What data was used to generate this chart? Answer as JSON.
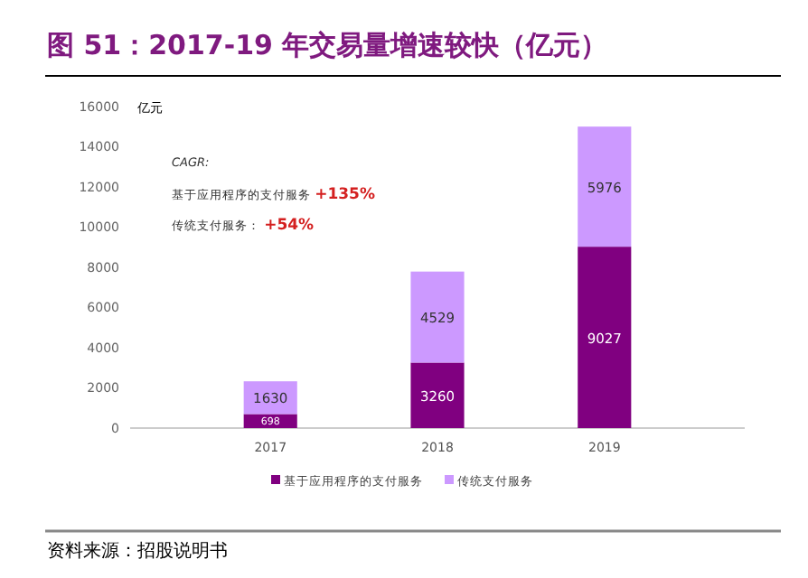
{
  "chart_data": {
    "type": "bar",
    "title": "图 51：2017-19 年交易量增速较快（亿元）",
    "ylabel": "亿元",
    "categories": [
      "2017",
      "2018",
      "2019"
    ],
    "series": [
      {
        "name": "基于应用程序的支付服务",
        "color": "#800080",
        "values": [
          698,
          3260,
          9027
        ]
      },
      {
        "name": "传统支付服务",
        "color": "#cc99ff",
        "values": [
          1630,
          4529,
          5976
        ]
      }
    ],
    "stacked": true,
    "data_labels": true,
    "ylim": [
      0,
      16000
    ],
    "yticks": [
      0,
      2000,
      4000,
      6000,
      8000,
      10000,
      12000,
      14000,
      16000
    ],
    "grid": false,
    "legend": "bottom",
    "annotations": [
      "CAGR:",
      "基于应用程序的支付服务 +135%",
      "传统支付服务： +54%",
      "资料来源：招股说明书"
    ]
  }
}
